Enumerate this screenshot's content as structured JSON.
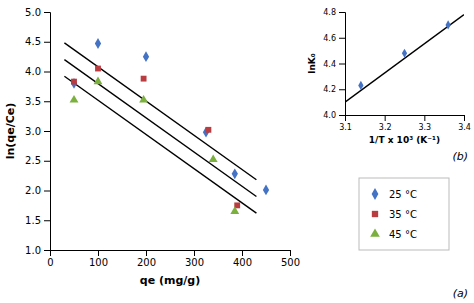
{
  "chart_data": [
    {
      "type": "scatter",
      "xlabel": "qe (mg/g)",
      "ylabel": "ln(qe/Ce)",
      "xlim": [
        0,
        500
      ],
      "ylim": [
        1.0,
        5.0
      ],
      "xticks": [
        0,
        100,
        200,
        300,
        400,
        500
      ],
      "yticks": [
        {
          "value": 1.0,
          "label": "1.0"
        },
        1.5,
        {
          "value": 2.0,
          "label": "2.0"
        },
        2.5,
        {
          "value": 3.0,
          "label": "3.0"
        },
        3.5,
        {
          "value": 4.0,
          "label": "4.0"
        },
        4.5,
        {
          "value": 5.0,
          "label": "5.0"
        }
      ],
      "grid": false,
      "legend": "lower right",
      "annotations": [
        "(a)"
      ],
      "series": [
        {
          "type": "line",
          "color": "black",
          "x": [
            30,
            430
          ],
          "values": [
            4.48,
            2.18
          ]
        },
        {
          "type": "line",
          "color": "black",
          "x": [
            30,
            430
          ],
          "values": [
            3.92,
            1.62
          ]
        },
        {
          "type": "line",
          "color": "black",
          "x": [
            30,
            430
          ],
          "values": [
            4.2,
            1.9
          ]
        },
        {
          "name": "25 °C",
          "color": "#4472C4",
          "marker": "diamond",
          "x": [
            50,
            100,
            200,
            325,
            385,
            450
          ],
          "values": [
            3.8,
            4.47,
            4.25,
            2.98,
            2.28,
            2.01
          ]
        },
        {
          "name": "35 °C",
          "color": "#B83C40",
          "marker": "square",
          "x": [
            50,
            100,
            195,
            330,
            390
          ],
          "values": [
            3.83,
            4.05,
            3.88,
            3.02,
            1.75
          ]
        },
        {
          "name": "45 °C",
          "color": "#7BAF3E",
          "marker": "triangle",
          "x": [
            50,
            100,
            195,
            340,
            385
          ],
          "values": [
            3.52,
            3.83,
            3.52,
            2.52,
            1.65
          ]
        }
      ]
    },
    {
      "type": "scatter",
      "xlabel": "1/T x 10³ (K⁻¹)",
      "ylabel": "lnK₀",
      "xlim": [
        3.1,
        3.4
      ],
      "ylim": [
        4.0,
        4.8
      ],
      "xticks": [
        3.1,
        3.2,
        3.3,
        3.4
      ],
      "yticks": [
        {
          "value": 4.0,
          "label": "4.0"
        },
        4.2,
        4.4,
        4.6,
        4.8
      ],
      "grid": false,
      "annotations": [
        "(b)"
      ],
      "series": [
        {
          "color": "#4472C4",
          "marker": "diamond",
          "x": [
            3.14,
            3.25,
            3.36
          ],
          "values": [
            4.23,
            4.48,
            4.7
          ]
        },
        {
          "type": "line",
          "color": "black",
          "x": [
            3.1,
            3.4
          ],
          "values": [
            4.1,
            4.78
          ]
        }
      ]
    }
  ]
}
